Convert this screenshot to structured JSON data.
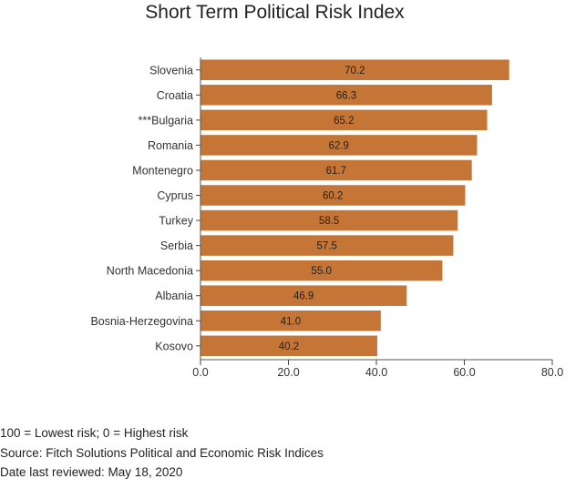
{
  "title": "Short Term Political Risk Index",
  "colors": {
    "bar": "#c57636",
    "axis": "#555555",
    "tick": "#444444"
  },
  "chart_data": {
    "type": "bar",
    "orientation": "horizontal",
    "title": "Short Term Political Risk Index",
    "categories": [
      "Slovenia",
      "Croatia",
      "***Bulgaria",
      "Romania",
      "Montenegro",
      "Cyprus",
      "Turkey",
      "Serbia",
      "North Macedonia",
      "Albania",
      "Bosnia-Herzegovina",
      "Kosovo"
    ],
    "values": [
      70.2,
      66.3,
      65.2,
      62.9,
      61.7,
      60.2,
      58.5,
      57.5,
      55.0,
      46.9,
      41.0,
      40.2
    ],
    "value_labels": [
      "70.2",
      "66.3",
      "65.2",
      "62.9",
      "61.7",
      "60.2",
      "58.5",
      "57.5",
      "55.0",
      "46.9",
      "41.0",
      "40.2"
    ],
    "xlim": [
      0,
      80
    ],
    "xticks": [
      0,
      20,
      40,
      60,
      80
    ],
    "xtick_labels": [
      "0.0",
      "20.0",
      "40.0",
      "60.0",
      "80.0"
    ],
    "xlabel": "",
    "ylabel": "",
    "grid": false,
    "legend": "none"
  },
  "notes": [
    "100 = Lowest risk; 0 = Highest risk",
    "Source: Fitch Solutions Political and Economic Risk Indices",
    "Date last reviewed: May 18, 2020"
  ]
}
